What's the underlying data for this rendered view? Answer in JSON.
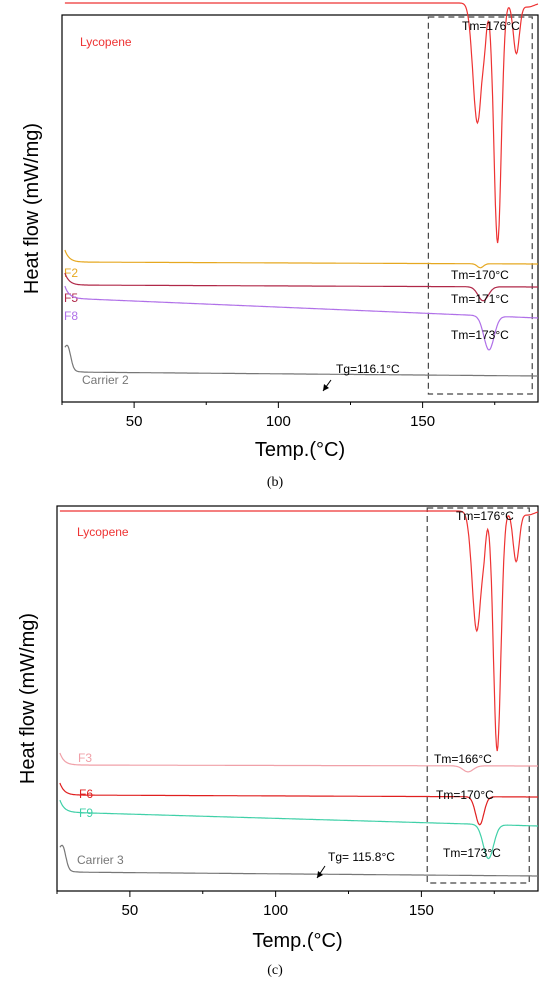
{
  "chart_data": [
    {
      "type": "line",
      "panel_label": "(b)",
      "xlabel": "Temp.(°C)",
      "ylabel": "Heat flow (mW/mg)",
      "xlim": [
        25,
        190
      ],
      "xticks": [
        50,
        100,
        150
      ],
      "grid": false,
      "highlight_box": {
        "x_range": [
          152,
          188
        ]
      },
      "series": [
        {
          "name": "Lycopene",
          "color": "#ee3333",
          "base": 3,
          "drift": 0,
          "peaks": [
            [
              169,
              2.2,
              120
            ],
            [
              171.5,
              0.9,
              18
            ],
            [
              176,
              1.8,
              240
            ],
            [
              182.5,
              1.5,
              50
            ],
            [
              186.5,
              3.0,
              4
            ]
          ]
        },
        {
          "name": "F2",
          "color": "#e6a820",
          "base": 262,
          "drift": 2,
          "peaks": [
            [
              170,
              1.5,
              4
            ]
          ]
        },
        {
          "name": "F5",
          "color": "#b02848",
          "base": 285,
          "drift": 2,
          "peaks": [
            [
              171,
              2.5,
              14
            ]
          ]
        },
        {
          "name": "F8",
          "color": "#b070e8",
          "base": 298,
          "drift": 20,
          "peaks": [
            [
              173,
              2.5,
              34
            ]
          ]
        },
        {
          "name": "Carrier 2",
          "color": "#777777",
          "base": 372,
          "drift": 4,
          "peaks": [
            [
              27,
              1.5,
              -20
            ]
          ]
        }
      ],
      "annotations": [
        {
          "text": "Tm=176°C",
          "x": 176,
          "series": "Lycopene"
        },
        {
          "text": "Tm=170°C",
          "x": 170,
          "series": "F2"
        },
        {
          "text": "Tm=171°C",
          "x": 171,
          "series": "F5"
        },
        {
          "text": "Tm=173°C",
          "x": 173,
          "series": "F8"
        },
        {
          "text": "Tg=116.1°C",
          "x": 116.1,
          "series": "Carrier 2"
        }
      ]
    },
    {
      "type": "line",
      "panel_label": "(c)",
      "xlabel": "Temp.(°C)",
      "ylabel": "Heat flow (mW/mg)",
      "xlim": [
        25,
        190
      ],
      "xticks": [
        50,
        100,
        150
      ],
      "grid": false,
      "highlight_box": {
        "x_range": [
          152,
          187
        ]
      },
      "series": [
        {
          "name": "Lycopene",
          "color": "#ee3333",
          "base": 17,
          "drift": 0,
          "peaks": [
            [
              169,
              2.2,
              120
            ],
            [
              171.5,
              0.9,
              18
            ],
            [
              176,
              1.8,
              240
            ],
            [
              182.5,
              1.5,
              50
            ],
            [
              186.5,
              3.0,
              4
            ]
          ]
        },
        {
          "name": "F3",
          "color": "#f0a0a8",
          "base": 271,
          "drift": 1,
          "peaks": [
            [
              166,
              2.5,
              6
            ]
          ]
        },
        {
          "name": "F6",
          "color": "#e02020",
          "base": 301,
          "drift": 2,
          "peaks": [
            [
              170,
              2.0,
              28
            ]
          ]
        },
        {
          "name": "F9",
          "color": "#40d0a8",
          "base": 318,
          "drift": 14,
          "peaks": [
            [
              173,
              2.5,
              34
            ]
          ]
        },
        {
          "name": "Carrier 3",
          "color": "#777777",
          "base": 378,
          "drift": 4,
          "peaks": [
            [
              27,
              1.5,
              -20
            ]
          ]
        }
      ],
      "annotations": [
        {
          "text": "Tm=176°C",
          "x": 176,
          "series": "Lycopene"
        },
        {
          "text": "Tm=166°C",
          "x": 166,
          "series": "F3"
        },
        {
          "text": "Tm=170°C",
          "x": 170,
          "series": "F6"
        },
        {
          "text": "Tm=173°C",
          "x": 173,
          "series": "F9"
        },
        {
          "text": "Tg= 115.8°C",
          "x": 115.8,
          "series": "Carrier 3"
        }
      ]
    }
  ]
}
